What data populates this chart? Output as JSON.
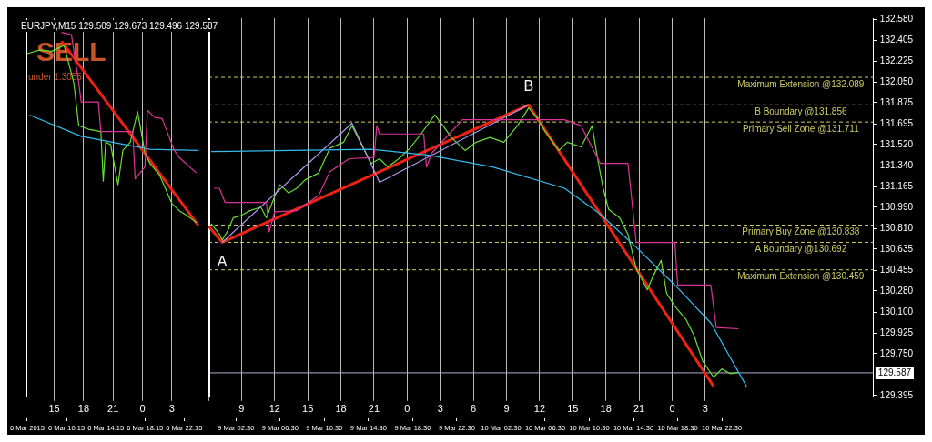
{
  "chart_data": [
    {
      "type": "line",
      "title": "EURJPY,M15 129.509 129.673 129.496 129.587",
      "xlim": [
        "2015-03-06T12:15",
        "2015-03-07T05:45"
      ],
      "xticks": [
        {
          "value": "2015-03-06T15:00",
          "label": "15"
        },
        {
          "value": "2015-03-06T18:00",
          "label": "18"
        },
        {
          "value": "2015-03-06T21:00",
          "label": "21"
        },
        {
          "value": "2015-03-07T00:00",
          "label": "0"
        },
        {
          "value": "2015-03-07T03:00",
          "label": "3"
        }
      ],
      "x2lim": [
        "2015-03-06T06:15",
        "2015-03-06T23:45"
      ],
      "x2ticks": [
        {
          "value": "2015-03-06T06:15",
          "label": "6 Mar 2015"
        },
        {
          "value": "2015-03-06T10:15",
          "label": "6 Mar 10:15"
        },
        {
          "value": "2015-03-06T14:15",
          "label": "6 Mar 14:15"
        },
        {
          "value": "2015-03-06T18:15",
          "label": "6 Mar 18:15"
        },
        {
          "value": "2015-03-06T22:15",
          "label": "6 Mar 22:15"
        }
      ],
      "ylim": [
        129.38,
        132.59
      ],
      "tick_labels": "x",
      "grid": "x",
      "legend": false,
      "series": [
        {
          "color": "#dd3399",
          "x": [
            "2015-03-06T15:45",
            "2015-03-06T16:45",
            "2015-03-06T17:30",
            "2015-03-06T17:45",
            "2015-03-06T19:30",
            "2015-03-06T19:45",
            "2015-03-06T23:00",
            "2015-03-06T23:15",
            "2015-03-07T00:15",
            "2015-03-07T00:30",
            "2015-03-07T01:15",
            "2015-03-07T02:00",
            "2015-03-07T03:15",
            "2015-03-07T03:45",
            "2015-03-07T05:30"
          ],
          "values": [
            132.47,
            132.45,
            132.04,
            131.88,
            131.88,
            131.63,
            131.63,
            131.23,
            131.33,
            131.81,
            131.75,
            131.74,
            131.47,
            131.41,
            131.28
          ]
        },
        {
          "color": "#33bbee",
          "x": [
            "2015-03-06T12:30",
            "2015-03-06T17:45",
            "2015-03-07T00:45",
            "2015-03-07T05:45"
          ],
          "values": [
            131.77,
            131.59,
            131.48,
            131.47
          ]
        },
        {
          "color": "#66dd33",
          "x": [
            "2015-03-06T12:15",
            "2015-03-06T13:30",
            "2015-03-06T14:45",
            "2015-03-06T16:00",
            "2015-03-06T17:00",
            "2015-03-06T17:30",
            "2015-03-06T18:30",
            "2015-03-06T19:45",
            "2015-03-06T20:00",
            "2015-03-06T20:15",
            "2015-03-06T20:45",
            "2015-03-06T21:30",
            "2015-03-06T22:00",
            "2015-03-06T22:45",
            "2015-03-06T23:30",
            "2015-03-07T00:15",
            "2015-03-07T00:45",
            "2015-03-07T01:45",
            "2015-03-07T03:00",
            "2015-03-07T03:45",
            "2015-03-07T04:30",
            "2015-03-07T05:30"
          ],
          "values": [
            132.29,
            132.32,
            132.31,
            132.36,
            132.04,
            131.68,
            131.65,
            131.63,
            131.21,
            131.54,
            131.52,
            131.18,
            131.47,
            131.54,
            131.8,
            131.45,
            131.36,
            131.26,
            131.02,
            130.96,
            130.92,
            130.86
          ]
        },
        {
          "color": "#ee2211",
          "x": [
            "2015-03-06T15:45",
            "2015-03-07T05:45"
          ],
          "values": [
            132.395,
            130.83
          ]
        }
      ],
      "annotations": [
        "SELL",
        "under 1.3055"
      ]
    },
    {
      "type": "line",
      "xlim": [
        "2015-03-09T06:00",
        "2015-03-11T18:15"
      ],
      "xticks": [
        {
          "value": "2015-03-09T06:00",
          "label": null
        },
        {
          "value": "2015-03-09T09:00",
          "label": "9"
        },
        {
          "value": "2015-03-09T12:00",
          "label": "12"
        },
        {
          "value": "2015-03-09T15:00",
          "label": "15"
        },
        {
          "value": "2015-03-09T18:00",
          "label": "18"
        },
        {
          "value": "2015-03-09T21:00",
          "label": "21"
        },
        {
          "value": "2015-03-10T00:00",
          "label": "0"
        },
        {
          "value": "2015-03-10T03:00",
          "label": "3"
        },
        {
          "value": "2015-03-10T06:00",
          "label": "6"
        },
        {
          "value": "2015-03-10T09:00",
          "label": "9"
        },
        {
          "value": "2015-03-10T12:00",
          "label": "12"
        },
        {
          "value": "2015-03-10T15:00",
          "label": "15"
        },
        {
          "value": "2015-03-10T18:00",
          "label": "18"
        },
        {
          "value": "2015-03-10T21:00",
          "label": "21"
        },
        {
          "value": "2015-03-11T00:00",
          "label": "0"
        },
        {
          "value": "2015-03-11T03:00",
          "label": "3"
        }
      ],
      "x2lim": [
        "2015-03-09T00:00",
        "2015-03-11T12:15"
      ],
      "x2ticks": [
        {
          "value": "2015-03-09T02:30",
          "label": "9 Mar 02:30"
        },
        {
          "value": "2015-03-09T06:30",
          "label": "9 Mar 06:30"
        },
        {
          "value": "2015-03-09T10:30",
          "label": "9 Mar 10:30"
        },
        {
          "value": "2015-03-09T14:30",
          "label": "9 Mar 14:30"
        },
        {
          "value": "2015-03-09T18:30",
          "label": "9 Mar 18:30"
        },
        {
          "value": "2015-03-09T22:30",
          "label": "9 Mar 22:30"
        },
        {
          "value": "2015-03-10T02:30",
          "label": "10 Mar 02:30"
        },
        {
          "value": "2015-03-10T06:30",
          "label": "10 Mar 06:30"
        },
        {
          "value": "2015-03-10T10:30",
          "label": "10 Mar 10:30"
        },
        {
          "value": "2015-03-10T14:30",
          "label": "10 Mar 14:30"
        },
        {
          "value": "2015-03-10T18:30",
          "label": "10 Mar 18:30"
        },
        {
          "value": "2015-03-10T22:30",
          "label": "10 Mar 22:30"
        }
      ],
      "ylim": [
        129.38,
        132.59
      ],
      "yticks": [
        {
          "value": 132.58,
          "label": "132.580"
        },
        132.405,
        132.225,
        {
          "value": 132.05,
          "label": "132.050"
        },
        131.875,
        131.695,
        {
          "value": 131.52,
          "label": "131.520"
        },
        {
          "value": 131.34,
          "label": "131.340"
        },
        131.165,
        {
          "value": 130.99,
          "label": "130.990"
        },
        {
          "value": 130.81,
          "label": "130.810"
        },
        130.635,
        130.455,
        {
          "value": 130.28,
          "label": "130.280"
        },
        {
          "value": 130.1,
          "label": "130.100"
        },
        129.925,
        {
          "value": 129.75,
          "label": "129.750"
        },
        129.395
      ],
      "grid": "x",
      "legend": false,
      "series": [
        {
          "color": "#dd3399",
          "x": [
            "2015-03-09T06:30",
            "2015-03-09T07:00",
            "2015-03-09T07:30",
            "2015-03-09T11:15",
            "2015-03-09T11:30",
            "2015-03-09T12:00",
            "2015-03-09T14:00",
            "2015-03-09T16:00",
            "2015-03-09T17:00",
            "2015-03-09T18:45",
            "2015-03-09T21:00",
            "2015-03-09T21:15",
            "2015-03-09T21:30",
            "2015-03-10T01:30",
            "2015-03-10T01:45",
            "2015-03-10T02:15",
            "2015-03-10T05:00",
            "2015-03-10T14:15",
            "2015-03-10T15:45",
            "2015-03-10T17:30",
            "2015-03-10T20:00",
            "2015-03-10T20:45",
            "2015-03-11T00:15",
            "2015-03-11T00:30",
            "2015-03-11T03:30",
            "2015-03-11T04:00",
            "2015-03-11T06:00"
          ],
          "values": [
            131.15,
            131.15,
            131.03,
            131.03,
            130.78,
            130.95,
            130.96,
            131.09,
            131.29,
            131.4,
            131.41,
            131.68,
            131.61,
            131.61,
            131.33,
            131.45,
            131.73,
            131.73,
            131.68,
            131.36,
            131.36,
            130.69,
            130.69,
            130.33,
            130.33,
            129.97,
            129.96
          ]
        },
        {
          "color": "#33bbee",
          "x": [
            "2015-03-09T06:15",
            "2015-03-09T13:30",
            "2015-03-09T20:45",
            "2015-03-10T02:00",
            "2015-03-10T07:45",
            "2015-03-10T14:15",
            "2015-03-10T17:30",
            "2015-03-10T20:45",
            "2015-03-11T00:15",
            "2015-03-11T03:30",
            "2015-03-11T06:45"
          ],
          "values": [
            131.46,
            131.47,
            131.48,
            131.43,
            131.33,
            131.15,
            130.93,
            130.65,
            130.33,
            130.01,
            129.47
          ]
        },
        {
          "color": "#aa99ee",
          "x": [
            "2015-03-09T07:15",
            "2015-03-09T19:00",
            "2015-03-09T21:30",
            "2015-03-10T11:00"
          ],
          "values": [
            130.692,
            131.7,
            131.2,
            131.856
          ]
        },
        {
          "color": "#66dd33",
          "x": [
            "2015-03-09T06:15",
            "2015-03-09T07:00",
            "2015-03-09T07:15",
            "2015-03-09T07:45",
            "2015-03-09T08:15",
            "2015-03-09T09:00",
            "2015-03-09T09:45",
            "2015-03-09T10:45",
            "2015-03-09T11:15",
            "2015-03-09T12:00",
            "2015-03-09T12:30",
            "2015-03-09T13:15",
            "2015-03-09T14:00",
            "2015-03-09T14:45",
            "2015-03-09T16:00",
            "2015-03-09T17:00",
            "2015-03-09T18:15",
            "2015-03-09T19:00",
            "2015-03-09T19:45",
            "2015-03-09T20:45",
            "2015-03-09T21:30",
            "2015-03-09T22:15",
            "2015-03-09T23:15",
            "2015-03-10T00:15",
            "2015-03-10T01:15",
            "2015-03-10T02:30",
            "2015-03-10T03:15",
            "2015-03-10T04:00",
            "2015-03-10T05:15",
            "2015-03-10T06:15",
            "2015-03-10T07:30",
            "2015-03-10T08:45",
            "2015-03-10T10:00",
            "2015-03-10T11:00",
            "2015-03-10T11:45",
            "2015-03-10T12:30",
            "2015-03-10T13:45",
            "2015-03-10T14:30",
            "2015-03-10T15:45",
            "2015-03-10T16:45",
            "2015-03-10T17:15",
            "2015-03-10T17:45",
            "2015-03-10T18:15",
            "2015-03-10T19:15",
            "2015-03-10T20:00",
            "2015-03-10T20:45",
            "2015-03-10T21:45",
            "2015-03-10T22:15",
            "2015-03-10T23:00",
            "2015-03-10T23:30",
            "2015-03-11T00:15",
            "2015-03-11T01:15",
            "2015-03-11T02:00",
            "2015-03-11T02:45",
            "2015-03-11T03:45",
            "2015-03-11T04:30",
            "2015-03-11T05:15",
            "2015-03-11T06:00"
          ],
          "values": [
            130.85,
            130.76,
            130.71,
            130.79,
            130.9,
            130.92,
            130.96,
            130.99,
            130.9,
            131.08,
            131.18,
            131.11,
            131.15,
            131.22,
            131.28,
            131.49,
            131.54,
            131.68,
            131.54,
            131.36,
            131.4,
            131.33,
            131.4,
            131.49,
            131.61,
            131.77,
            131.68,
            131.58,
            131.47,
            131.54,
            131.58,
            131.54,
            131.68,
            131.83,
            131.75,
            131.63,
            131.47,
            131.54,
            131.5,
            131.68,
            131.4,
            131.15,
            130.97,
            130.9,
            130.76,
            130.47,
            130.29,
            130.4,
            130.54,
            130.26,
            130.15,
            130.04,
            129.9,
            129.69,
            129.55,
            129.62,
            129.58,
            129.59
          ]
        },
        {
          "color": "#ee2211",
          "x": [
            "2015-03-09T06:00",
            "2015-03-09T07:15",
            "2015-03-10T11:00",
            "2015-03-11T03:45"
          ],
          "values": [
            130.83,
            130.692,
            131.856,
            129.474
          ]
        }
      ],
      "ref_lines": [
        {
          "axis": "y",
          "value": 132.089,
          "label": "Maximum Extension @132.089",
          "color": "#cccc66",
          "line_style": "dashed"
        },
        {
          "axis": "y",
          "value": 131.856,
          "label": "B Boundary @131.856",
          "color": "#cccc66",
          "line_style": "dashed"
        },
        {
          "axis": "y",
          "value": 131.711,
          "label": "Primary Sell Zone @131.711",
          "color": "#cccc66",
          "line_style": "dashed"
        },
        {
          "axis": "y",
          "value": 130.838,
          "label": "Primary Buy Zone @130.838",
          "color": "#cccc66",
          "line_style": "dashed"
        },
        {
          "axis": "y",
          "value": 130.692,
          "label": "A Boundary @130.692",
          "color": "#cccc66",
          "line_style": "dashed"
        },
        {
          "axis": "y",
          "value": 130.459,
          "label": "Maximum Extension @130.459",
          "color": "#cccc66",
          "line_style": "dashed"
        },
        {
          "axis": "y",
          "value": 129.587,
          "label": "129.587",
          "color": "#aab0d0",
          "line_style": "solid"
        },
        {
          "axis": "x",
          "value": "2015-03-09T06:00",
          "color": "#ffffff",
          "line_style": "solid"
        }
      ],
      "annotations": [
        {
          "text": "A",
          "x": "2015-03-09T07:15",
          "y": 130.692
        },
        {
          "text": "B",
          "x": "2015-03-10T11:00",
          "y": 131.856
        }
      ]
    }
  ]
}
